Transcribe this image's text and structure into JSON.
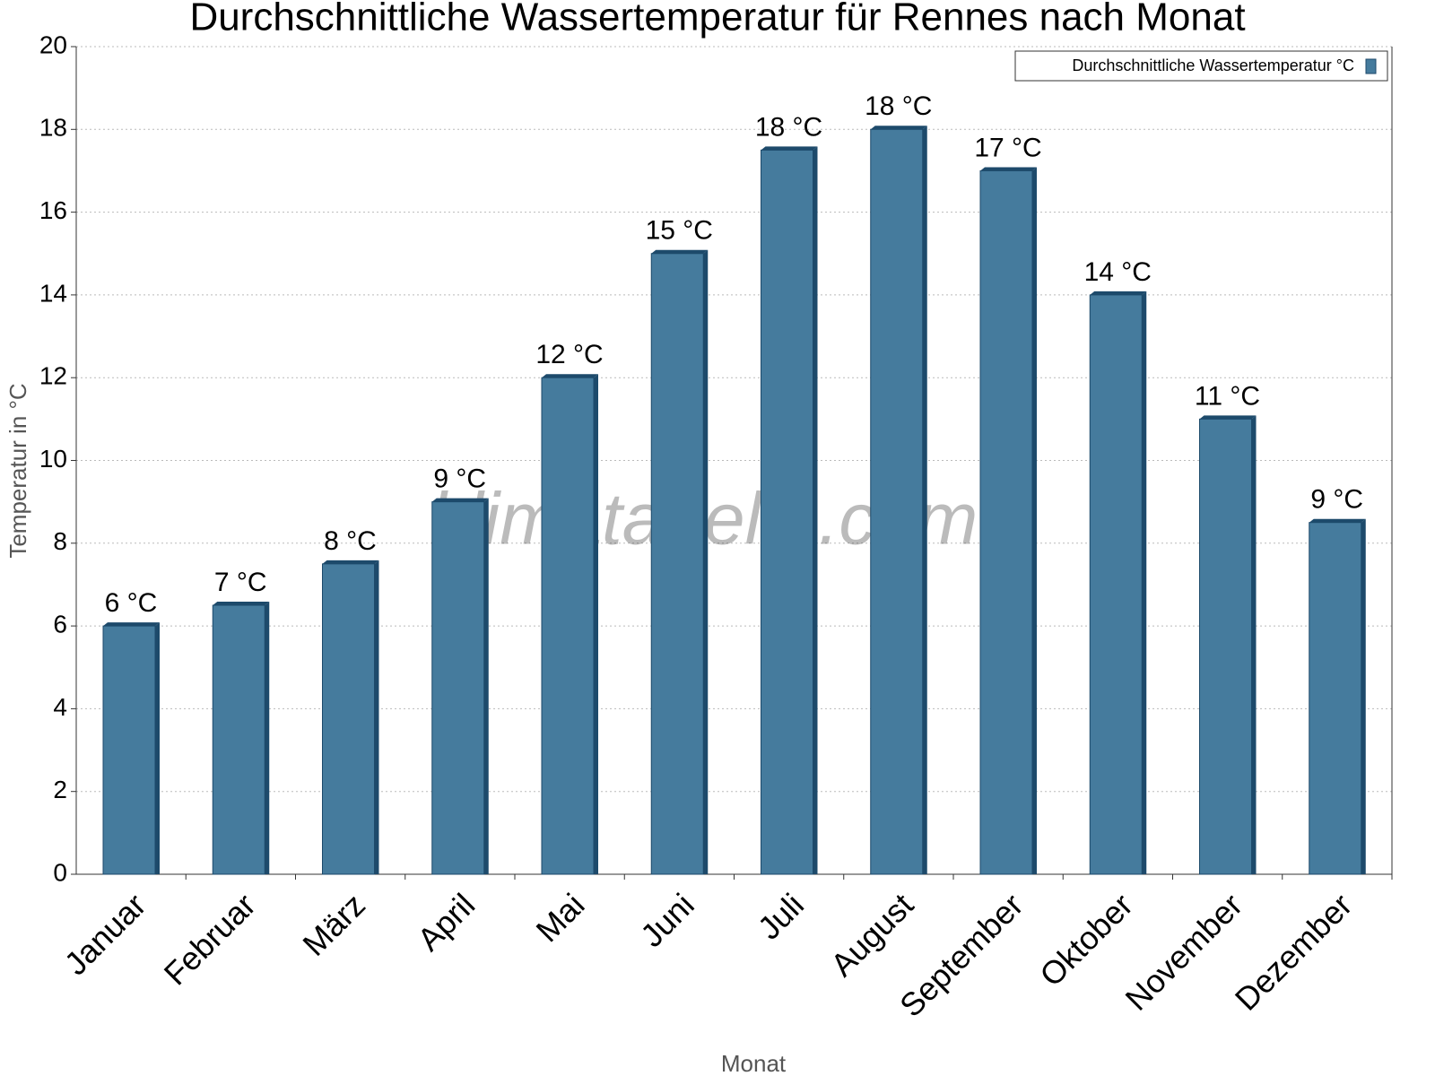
{
  "chart_data": {
    "type": "bar",
    "title": "Durchschnittliche Wassertemperatur für Rennes nach Monat",
    "x_label": "Monat",
    "y_label": "Temperatur in °C",
    "watermark": "klimatabelle.com",
    "categories": [
      "Januar",
      "Februar",
      "März",
      "April",
      "Mai",
      "Juni",
      "Juli",
      "August",
      "September",
      "Oktober",
      "November",
      "Dezember"
    ],
    "series": [
      {
        "name": "Durchschnittliche Wassertemperatur °C",
        "color": "#457b9d",
        "values": [
          6,
          6.5,
          7.5,
          9,
          12,
          15,
          17.5,
          18,
          17,
          14,
          11,
          8.5
        ],
        "value_labels": [
          "6 °C",
          "7 °C",
          "8 °C",
          "9 °C",
          "12 °C",
          "15 °C",
          "18 °C",
          "18 °C",
          "17 °C",
          "14 °C",
          "11 °C",
          "9 °C"
        ]
      }
    ],
    "ylim": [
      0,
      20
    ],
    "yticks": [
      0,
      2,
      4,
      6,
      8,
      10,
      12,
      14,
      16,
      18,
      20
    ],
    "grid": true,
    "legend": "top-right"
  }
}
